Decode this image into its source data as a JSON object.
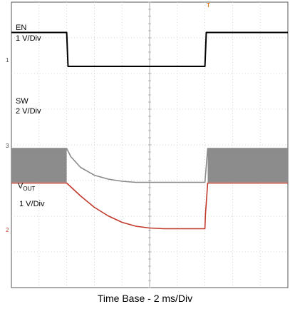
{
  "chart_data": {
    "type": "line",
    "title": "",
    "xlabel": "Time Base - 2 ms/Div",
    "grid": true,
    "x_divisions": 10,
    "y_divisions": 8,
    "trigger_marker": "T",
    "series": [
      {
        "name": "EN",
        "scale": "1 V/Div",
        "ground_marker": "1",
        "color": "#000000",
        "baseline_div": 1.8,
        "points": [
          [
            0,
            0.95
          ],
          [
            2.0,
            0.95
          ],
          [
            2.05,
            0
          ],
          [
            7.0,
            0
          ],
          [
            7.05,
            0.95
          ],
          [
            10,
            0.95
          ]
        ]
      },
      {
        "name": "SW",
        "scale": "2 V/Div",
        "ground_marker": "3",
        "color": "#8a8a8a",
        "baseline_div": 5.05,
        "points": [
          [
            0,
            0.95
          ],
          [
            2.0,
            0.95
          ],
          [
            2.15,
            0.72
          ],
          [
            2.5,
            0.42
          ],
          [
            3.0,
            0.2
          ],
          [
            3.5,
            0.09
          ],
          [
            4.0,
            0.03
          ],
          [
            4.5,
            0
          ],
          [
            7.0,
            0
          ],
          [
            7.1,
            0.95
          ],
          [
            10,
            0.95
          ]
        ]
      },
      {
        "name": "V",
        "name_sub": "OUT",
        "scale": "1 V/Div",
        "ground_marker": "2",
        "color": "#c0392b",
        "baseline_div": 6.35,
        "points": [
          [
            0,
            1.28
          ],
          [
            2.0,
            1.28
          ],
          [
            2.5,
            0.92
          ],
          [
            3.0,
            0.6
          ],
          [
            3.5,
            0.36
          ],
          [
            4.0,
            0.18
          ],
          [
            4.5,
            0.07
          ],
          [
            5.0,
            0.02
          ],
          [
            5.5,
            0
          ],
          [
            7.0,
            0
          ],
          [
            7.02,
            0.42
          ],
          [
            7.1,
            1.28
          ],
          [
            10,
            1.28
          ]
        ]
      }
    ]
  }
}
